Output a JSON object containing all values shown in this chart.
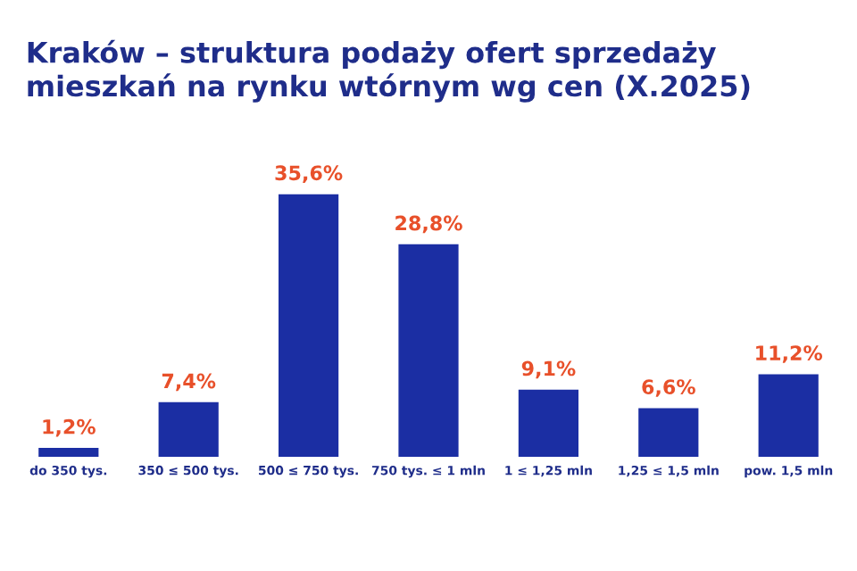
{
  "chart_data": {
    "type": "bar",
    "title": "Kraków – struktura podaży ofert sprzedaży\nmieszkań na rynku wtórnym wg cen (X.2025)",
    "categories": [
      "do 350 tys.",
      "350 ≤ 500 tys.",
      "500 ≤ 750 tys.",
      "750 tys. ≤ 1 mln",
      "1 ≤ 1,25 mln",
      "1,25 ≤ 1,5 mln",
      "pow. 1,5 mln"
    ],
    "values": [
      1.2,
      7.4,
      35.6,
      28.8,
      9.1,
      6.6,
      11.2
    ],
    "value_labels": [
      "1,2%",
      "7,4%",
      "35,6%",
      "28,8%",
      "9,1%",
      "6,6%",
      "11,2%"
    ],
    "color": "#1b2ea3",
    "grid": false,
    "legend": false
  }
}
